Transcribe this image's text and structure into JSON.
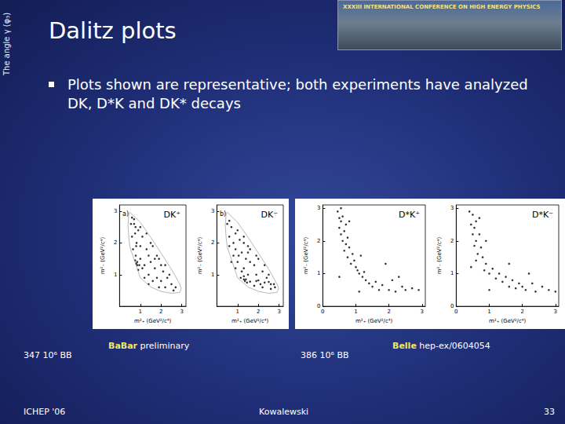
{
  "slide": {
    "sidebar": "The angle γ (φ₃)",
    "title": "Dalitz plots",
    "banner": "XXXIII INTERNATIONAL CONFERENCE ON HIGH ENERGY PHYSICS",
    "bullet": "Plots shown are representative; both experiments have analyzed DK, D*K and DK* decays",
    "captions": [
      {
        "events": "347 10⁶ BB",
        "experiment": "BaBar",
        "note": "preliminary"
      },
      {
        "events": "386 10⁶ BB",
        "experiment": "Belle",
        "note": "hep-ex/0604054"
      }
    ],
    "footer": {
      "left": "ICHEP '06",
      "center": "Kowalewski",
      "right": "33"
    }
  },
  "chart_data": [
    {
      "type": "scatter",
      "title": "DK⁺",
      "annotation": "a)",
      "x_label": "m²₊ (GeV²/c⁴)",
      "y_label": "m²₋ (GeV²/c⁴)",
      "xlim": [
        0,
        3.2
      ],
      "ylim": [
        0,
        3.2
      ],
      "xticks": [
        1,
        2,
        3
      ],
      "yticks": [
        1,
        2,
        3
      ],
      "grid": false,
      "series": [
        {
          "type": "line",
          "color": "#9a9a9a",
          "line_style": "solid",
          "values": [
            [
              0.406,
              2.55
            ],
            [
              0.45,
              2.14
            ],
            [
              0.5,
              1.87
            ],
            [
              1.0,
              0.9
            ],
            [
              1.5,
              0.61
            ],
            [
              2.0,
              0.47
            ],
            [
              2.5,
              0.41
            ],
            [
              2.9,
              0.44
            ],
            [
              2.975,
              0.56
            ],
            [
              2.9,
              0.7
            ],
            [
              2.5,
              1.17
            ],
            [
              2.0,
              1.68
            ],
            [
              1.5,
              2.18
            ],
            [
              1.0,
              2.65
            ],
            [
              0.5,
              2.97
            ],
            [
              0.45,
              2.93
            ],
            [
              0.406,
              2.55
            ]
          ]
        },
        {
          "type": "scatter",
          "color": "#000000",
          "marker": "circle",
          "values": [
            [
              0.8,
              1.35
            ],
            [
              0.78,
              1.6
            ],
            [
              0.82,
              2.0
            ],
            [
              0.75,
              2.3
            ],
            [
              0.85,
              1.4
            ],
            [
              0.8,
              1.9
            ],
            [
              0.77,
              2.5
            ],
            [
              0.85,
              1.3
            ],
            [
              0.6,
              2.2
            ],
            [
              0.7,
              2.6
            ],
            [
              0.55,
              2.6
            ],
            [
              0.9,
              2.4
            ],
            [
              1.0,
              1.5
            ],
            [
              1.2,
              1.3
            ],
            [
              1.3,
              1.8
            ],
            [
              1.1,
              2.2
            ],
            [
              1.4,
              1.0
            ],
            [
              1.5,
              1.4
            ],
            [
              1.6,
              0.8
            ],
            [
              1.7,
              1.2
            ],
            [
              1.8,
              0.9
            ],
            [
              1.9,
              1.5
            ],
            [
              2.0,
              0.8
            ],
            [
              2.1,
              1.1
            ],
            [
              2.2,
              0.6
            ],
            [
              2.3,
              0.9
            ],
            [
              2.5,
              0.7
            ],
            [
              2.6,
              0.5
            ],
            [
              2.4,
              1.0
            ],
            [
              2.7,
              0.6
            ],
            [
              1.2,
              0.9
            ],
            [
              1.0,
              1.9
            ],
            [
              1.3,
              2.3
            ],
            [
              1.6,
              1.9
            ],
            [
              1.5,
              2.0
            ],
            [
              0.65,
              1.8
            ],
            [
              0.9,
              1.15
            ],
            [
              1.1,
              1.2
            ],
            [
              1.4,
              1.6
            ],
            [
              1.7,
              1.5
            ],
            [
              2.0,
              1.3
            ],
            [
              1.9,
              0.6
            ],
            [
              1.4,
              0.7
            ],
            [
              1.0,
              2.5
            ],
            [
              0.7,
              2.75
            ],
            [
              0.6,
              2.8
            ],
            [
              1.8,
              1.6
            ],
            [
              2.2,
              1.3
            ],
            [
              0.95,
              1.3
            ],
            [
              0.75,
              1.45
            ]
          ]
        }
      ]
    },
    {
      "type": "scatter",
      "title": "DK⁻",
      "annotation": "b)",
      "x_label": "m²₊ (GeV²/c⁴)",
      "y_label": "m²₋ (GeV²/c⁴)",
      "xlim": [
        0,
        3.2
      ],
      "ylim": [
        0,
        3.2
      ],
      "xticks": [
        1,
        2,
        3
      ],
      "yticks": [
        1,
        2,
        3
      ],
      "grid": false,
      "series": [
        {
          "type": "line",
          "color": "#9a9a9a",
          "line_style": "solid",
          "values": [
            [
              0.406,
              2.55
            ],
            [
              0.45,
              2.14
            ],
            [
              0.5,
              1.87
            ],
            [
              1.0,
              0.9
            ],
            [
              1.5,
              0.61
            ],
            [
              2.0,
              0.47
            ],
            [
              2.5,
              0.41
            ],
            [
              2.9,
              0.44
            ],
            [
              2.975,
              0.56
            ],
            [
              2.9,
              0.7
            ],
            [
              2.5,
              1.17
            ],
            [
              2.0,
              1.68
            ],
            [
              1.5,
              2.18
            ],
            [
              1.0,
              2.65
            ],
            [
              0.5,
              2.97
            ],
            [
              0.45,
              2.93
            ],
            [
              0.406,
              2.55
            ]
          ]
        },
        {
          "type": "scatter",
          "color": "#000000",
          "marker": "circle",
          "values": [
            [
              1.35,
              0.8
            ],
            [
              1.6,
              0.78
            ],
            [
              2.0,
              0.82
            ],
            [
              2.3,
              0.75
            ],
            [
              1.4,
              0.85
            ],
            [
              1.9,
              0.8
            ],
            [
              2.5,
              0.77
            ],
            [
              1.3,
              0.85
            ],
            [
              2.2,
              0.6
            ],
            [
              2.6,
              0.7
            ],
            [
              2.6,
              0.55
            ],
            [
              2.4,
              0.9
            ],
            [
              1.5,
              1.0
            ],
            [
              1.3,
              1.2
            ],
            [
              1.8,
              1.3
            ],
            [
              2.2,
              1.1
            ],
            [
              1.0,
              1.4
            ],
            [
              1.4,
              1.5
            ],
            [
              0.8,
              1.6
            ],
            [
              1.2,
              1.7
            ],
            [
              0.9,
              1.8
            ],
            [
              1.5,
              1.9
            ],
            [
              0.8,
              2.0
            ],
            [
              1.1,
              2.1
            ],
            [
              0.6,
              2.2
            ],
            [
              0.9,
              2.3
            ],
            [
              0.7,
              2.5
            ],
            [
              0.5,
              2.6
            ],
            [
              1.0,
              2.4
            ],
            [
              0.6,
              2.7
            ],
            [
              0.9,
              1.2
            ],
            [
              1.9,
              1.0
            ],
            [
              2.3,
              1.3
            ],
            [
              1.9,
              1.6
            ],
            [
              2.0,
              1.5
            ],
            [
              1.8,
              0.65
            ],
            [
              1.15,
              0.9
            ],
            [
              1.2,
              1.1
            ],
            [
              1.6,
              1.4
            ],
            [
              1.5,
              1.7
            ],
            [
              1.3,
              2.0
            ],
            [
              0.6,
              1.9
            ],
            [
              0.7,
              1.4
            ],
            [
              2.5,
              1.0
            ],
            [
              2.75,
              0.7
            ],
            [
              2.8,
              0.6
            ],
            [
              1.6,
              1.8
            ],
            [
              1.3,
              2.2
            ],
            [
              1.3,
              0.95
            ],
            [
              1.45,
              0.75
            ],
            [
              1.05,
              1.6
            ],
            [
              2.1,
              0.7
            ]
          ]
        }
      ]
    },
    {
      "type": "scatter",
      "title": "D*K⁺",
      "x_label": "m²₊ (GeV²/c⁴)",
      "y_label": "m²₋ (GeV²/c⁴)",
      "xlim": [
        0,
        3.1
      ],
      "ylim": [
        0,
        3.1
      ],
      "xticks": [
        0,
        1,
        2,
        3
      ],
      "yticks": [
        0,
        1,
        2,
        3
      ],
      "grid": false,
      "series": [
        {
          "type": "scatter",
          "color": "#000000",
          "marker": "circle",
          "values": [
            [
              0.45,
              2.9
            ],
            [
              0.5,
              2.7
            ],
            [
              0.55,
              2.6
            ],
            [
              0.6,
              2.75
            ],
            [
              0.5,
              2.4
            ],
            [
              0.65,
              2.3
            ],
            [
              0.7,
              2.5
            ],
            [
              0.55,
              2.2
            ],
            [
              0.75,
              2.1
            ],
            [
              0.6,
              2.0
            ],
            [
              0.7,
              1.9
            ],
            [
              0.8,
              1.8
            ],
            [
              0.65,
              1.7
            ],
            [
              0.9,
              1.6
            ],
            [
              0.75,
              1.5
            ],
            [
              0.85,
              1.3
            ],
            [
              1.0,
              1.2
            ],
            [
              0.95,
              1.4
            ],
            [
              1.1,
              1.0
            ],
            [
              1.2,
              0.9
            ],
            [
              1.05,
              1.1
            ],
            [
              1.3,
              0.8
            ],
            [
              1.4,
              0.7
            ],
            [
              1.25,
              1.05
            ],
            [
              1.5,
              0.6
            ],
            [
              1.6,
              0.75
            ],
            [
              1.7,
              0.5
            ],
            [
              1.8,
              0.65
            ],
            [
              2.0,
              0.5
            ],
            [
              2.1,
              0.8
            ],
            [
              2.2,
              0.45
            ],
            [
              2.4,
              0.6
            ],
            [
              2.5,
              0.5
            ],
            [
              2.7,
              0.55
            ],
            [
              2.9,
              0.5
            ],
            [
              1.1,
              0.45
            ],
            [
              0.5,
              0.9
            ],
            [
              1.9,
              1.3
            ],
            [
              2.3,
              0.9
            ],
            [
              1.15,
              1.55
            ],
            [
              0.55,
              3.0
            ],
            [
              0.8,
              2.6
            ]
          ]
        }
      ]
    },
    {
      "type": "scatter",
      "title": "D*K⁻",
      "x_label": "m²₊ (GeV²/c⁴)",
      "y_label": "m²₋ (GeV²/c⁴)",
      "xlim": [
        0,
        3.1
      ],
      "ylim": [
        0,
        3.1
      ],
      "xticks": [
        0,
        1,
        2,
        3
      ],
      "yticks": [
        0,
        1,
        2,
        3
      ],
      "grid": false,
      "series": [
        {
          "type": "scatter",
          "color": "#000000",
          "marker": "circle",
          "values": [
            [
              0.4,
              2.9
            ],
            [
              0.5,
              2.8
            ],
            [
              0.45,
              2.5
            ],
            [
              0.55,
              2.4
            ],
            [
              0.6,
              2.6
            ],
            [
              0.5,
              2.2
            ],
            [
              0.6,
              2.0
            ],
            [
              0.7,
              2.2
            ],
            [
              0.55,
              1.85
            ],
            [
              0.65,
              1.6
            ],
            [
              0.75,
              1.8
            ],
            [
              0.8,
              1.5
            ],
            [
              0.6,
              1.4
            ],
            [
              0.9,
              1.3
            ],
            [
              0.85,
              1.1
            ],
            [
              1.0,
              1.0
            ],
            [
              1.1,
              1.15
            ],
            [
              1.2,
              0.85
            ],
            [
              1.3,
              1.0
            ],
            [
              1.4,
              0.75
            ],
            [
              1.5,
              0.9
            ],
            [
              1.6,
              0.6
            ],
            [
              1.7,
              0.8
            ],
            [
              1.8,
              0.55
            ],
            [
              1.9,
              0.7
            ],
            [
              2.0,
              0.6
            ],
            [
              2.1,
              0.5
            ],
            [
              2.3,
              0.7
            ],
            [
              2.4,
              0.45
            ],
            [
              2.6,
              0.6
            ],
            [
              2.8,
              0.5
            ],
            [
              3.0,
              0.45
            ],
            [
              0.7,
              2.7
            ],
            [
              0.45,
              1.2
            ],
            [
              1.0,
              0.5
            ],
            [
              1.6,
              1.3
            ],
            [
              0.9,
              2.0
            ],
            [
              2.2,
              1.0
            ]
          ]
        }
      ]
    }
  ]
}
